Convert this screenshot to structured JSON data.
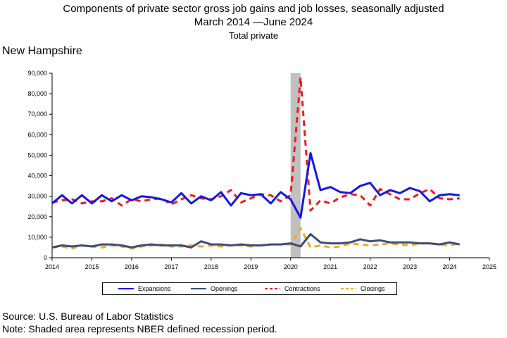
{
  "title_line1": "Components of private sector gross job gains and job losses, seasonally adjusted",
  "title_line2": "March 2014 —June 2024",
  "title_line3": "Total private",
  "region": "New Hampshire",
  "source": "Source: U.S. Bureau of Labor Statistics",
  "note": "Note: Shaded area represents NBER defined recession period.",
  "chart_data": {
    "type": "line",
    "title": "Components of private sector gross job gains and job losses, seasonally adjusted",
    "xlabel": "",
    "ylabel": "",
    "xlim": [
      2014,
      2025
    ],
    "ylim": [
      0,
      90000
    ],
    "x_ticks": [
      "2014",
      "2015",
      "2016",
      "2017",
      "2018",
      "2019",
      "2020",
      "2021",
      "2022",
      "2023",
      "2024",
      "2025"
    ],
    "y_ticks": [
      "0",
      "10,000",
      "20,000",
      "30,000",
      "40,000",
      "50,000",
      "60,000",
      "70,000",
      "80,000",
      "90,000"
    ],
    "recession": {
      "start": 2020.0,
      "end": 2020.25
    },
    "legend_position": "bottom",
    "x": [
      2014.0,
      2014.25,
      2014.5,
      2014.75,
      2015.0,
      2015.25,
      2015.5,
      2015.75,
      2016.0,
      2016.25,
      2016.5,
      2016.75,
      2017.0,
      2017.25,
      2017.5,
      2017.75,
      2018.0,
      2018.25,
      2018.5,
      2018.75,
      2019.0,
      2019.25,
      2019.5,
      2019.75,
      2020.0,
      2020.25,
      2020.5,
      2020.75,
      2021.0,
      2021.25,
      2021.5,
      2021.75,
      2022.0,
      2022.25,
      2022.5,
      2022.75,
      2023.0,
      2023.25,
      2023.5,
      2023.75,
      2024.0,
      2024.25
    ],
    "series": [
      {
        "name": "Expansions",
        "color": "#1515e6",
        "dash": "solid",
        "width": 3,
        "values": [
          26500,
          30500,
          26500,
          30500,
          26500,
          30500,
          27500,
          30500,
          28000,
          30000,
          29500,
          28500,
          27000,
          31500,
          26500,
          30000,
          28000,
          32000,
          25500,
          31500,
          30500,
          31000,
          26500,
          32000,
          28500,
          19500,
          51000,
          33000,
          34500,
          32000,
          31500,
          35000,
          36500,
          30500,
          33000,
          31500,
          34000,
          32500,
          27500,
          30500,
          31000,
          30500
        ]
      },
      {
        "name": "Openings",
        "color": "#3a4e78",
        "dash": "solid",
        "width": 3,
        "values": [
          5000,
          6000,
          5500,
          6000,
          5500,
          6500,
          6500,
          6000,
          5000,
          6000,
          6500,
          6000,
          6000,
          6000,
          5000,
          8000,
          6500,
          6500,
          6000,
          6500,
          6000,
          6000,
          6500,
          6500,
          7000,
          5500,
          11500,
          7500,
          7000,
          7000,
          7500,
          9000,
          8000,
          8500,
          7500,
          7500,
          7500,
          7000,
          7000,
          6500,
          7500,
          6500
        ]
      },
      {
        "name": "Contractions",
        "color": "#ee1c1c",
        "dash": "dashed",
        "width": 3,
        "values": [
          27000,
          28000,
          28500,
          26500,
          27500,
          27500,
          29000,
          25500,
          28500,
          27500,
          28500,
          29000,
          26000,
          28500,
          30500,
          29000,
          28500,
          30000,
          33000,
          27000,
          29000,
          31000,
          30500,
          27500,
          30500,
          88000,
          23000,
          28000,
          26500,
          29500,
          31000,
          30500,
          25500,
          33500,
          31000,
          28500,
          28500,
          31500,
          33500,
          29000,
          28500,
          29000
        ]
      },
      {
        "name": "Closings",
        "color": "#f5a81c",
        "dash": "dashed",
        "width": 3,
        "values": [
          5000,
          5500,
          4500,
          6000,
          5500,
          5000,
          6000,
          5500,
          4500,
          5500,
          6000,
          6500,
          5500,
          5500,
          6000,
          5500,
          6000,
          5500,
          6000,
          6000,
          5500,
          6000,
          6500,
          6500,
          6500,
          14500,
          5000,
          6000,
          5000,
          5500,
          7000,
          6500,
          6000,
          6500,
          7000,
          6500,
          6000,
          7000,
          7000,
          6500,
          6000,
          7000
        ]
      }
    ]
  }
}
